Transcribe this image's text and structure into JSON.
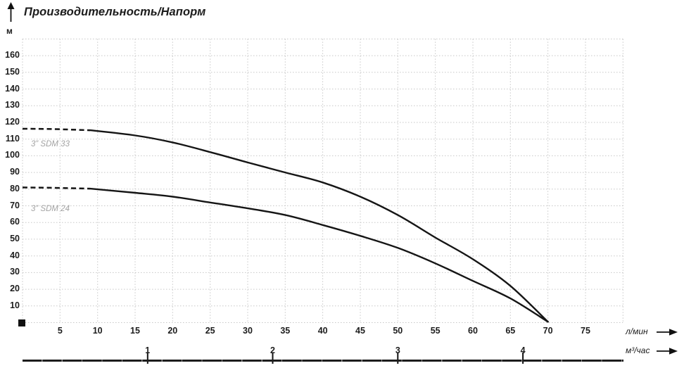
{
  "title": "Производительность/Напорм",
  "y_unit": "м",
  "x_unit_primary": "л/мин",
  "x_unit_secondary": "м³/час",
  "colors": {
    "curve": "#151515",
    "grid": "#c7c7c7",
    "series_label": "#a3a3a3",
    "text": "#1c1c1c",
    "axis_line": "#1c1c1c"
  },
  "chart_data": {
    "type": "line",
    "title": "Производительность/Напорм",
    "ylabel": "м",
    "xlabel_primary": "л/мин",
    "xlabel_secondary": "м³/час",
    "x_range_l_min": [
      0,
      80
    ],
    "y_range_m": [
      0,
      170
    ],
    "grid": true,
    "grid_step_x_l_min": 5,
    "grid_step_y_m": 10,
    "x_ticks_l_min": [
      5,
      10,
      15,
      20,
      25,
      30,
      35,
      40,
      45,
      50,
      55,
      60,
      65,
      70,
      75
    ],
    "y_ticks_m": [
      10,
      20,
      30,
      40,
      50,
      60,
      70,
      80,
      90,
      100,
      110,
      120,
      130,
      140,
      150,
      160
    ],
    "x_ticks_m3_h": [
      1,
      2,
      3,
      4
    ],
    "l_min_per_m3_h": 16.6667,
    "series": [
      {
        "name": "3” SDM 33",
        "dashed_points_l_min_m": [
          [
            0,
            116.2
          ],
          [
            4,
            116
          ],
          [
            9,
            115.3
          ]
        ],
        "points_l_min_m": [
          [
            9,
            115.3
          ],
          [
            15,
            112.2
          ],
          [
            20,
            108
          ],
          [
            25,
            102.2
          ],
          [
            30,
            96
          ],
          [
            35,
            90
          ],
          [
            40,
            84
          ],
          [
            45,
            75.5
          ],
          [
            50,
            64.5
          ],
          [
            55,
            51
          ],
          [
            60,
            38
          ],
          [
            65,
            22
          ],
          [
            70,
            0.5
          ]
        ]
      },
      {
        "name": "3” SDM 24",
        "dashed_points_l_min_m": [
          [
            0,
            81
          ],
          [
            4,
            80.8
          ],
          [
            9,
            80.3
          ]
        ],
        "points_l_min_m": [
          [
            9,
            80.3
          ],
          [
            15,
            77.8
          ],
          [
            20,
            75.5
          ],
          [
            25,
            72
          ],
          [
            30,
            68.5
          ],
          [
            35,
            64.5
          ],
          [
            40,
            58.5
          ],
          [
            45,
            52
          ],
          [
            50,
            44.8
          ],
          [
            55,
            35.5
          ],
          [
            60,
            25
          ],
          [
            65,
            14.5
          ],
          [
            70,
            0.5
          ]
        ]
      }
    ]
  }
}
